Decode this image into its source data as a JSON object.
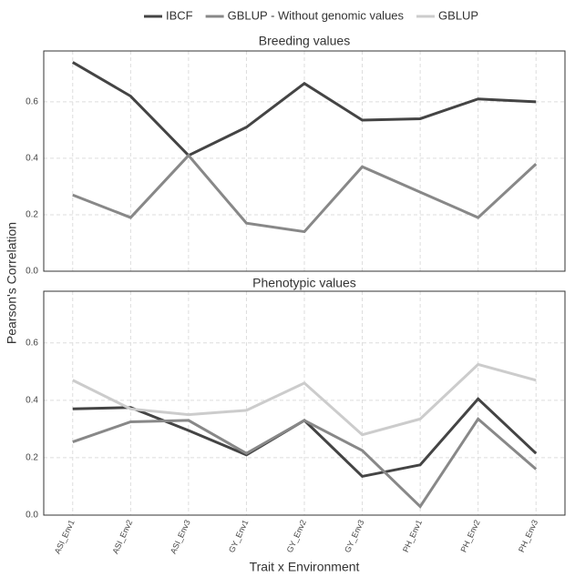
{
  "chart_data": [
    {
      "type": "line",
      "title": "Breeding values",
      "ylabel": "Pearson's Correlation",
      "categories": [
        "ASI_Env1",
        "ASI_Env2",
        "ASI_Env3",
        "GY_Env1",
        "GY_Env2",
        "GY_Env3",
        "PH_Env1",
        "PH_Env2",
        "PH_Env3"
      ],
      "series": [
        {
          "color": "#444444",
          "values": [
            0.74,
            0.62,
            0.41,
            0.51,
            0.665,
            0.535,
            0.54,
            0.61,
            0.6
          ]
        },
        {
          "color": "#888888",
          "values": [
            0.27,
            0.19,
            0.41,
            0.17,
            0.14,
            0.37,
            0.28,
            0.19,
            0.38
          ]
        }
      ],
      "ylim": [
        0,
        0.78
      ],
      "yticks": [
        {
          "value": 0,
          "label": "0.0"
        },
        {
          "value": 0.2,
          "label": "0.2"
        },
        {
          "value": 0.4,
          "label": "0.4"
        },
        {
          "value": 0.6,
          "label": "0.6"
        }
      ],
      "grid": true
    },
    {
      "type": "line",
      "title": "Phenotypic values",
      "xlabel": "Trait x Environment",
      "categories": [
        "ASI_Env1",
        "ASI_Env2",
        "ASI_Env3",
        "GY_Env1",
        "GY_Env2",
        "GY_Env3",
        "PH_Env1",
        "PH_Env2",
        "PH_Env3"
      ],
      "series": [
        {
          "name": "IBCF",
          "color": "#444444",
          "values": [
            0.37,
            0.375,
            0.295,
            0.21,
            0.33,
            0.135,
            0.175,
            0.405,
            0.215
          ]
        },
        {
          "name": "GBLUP - Without genomic values",
          "color": "#888888",
          "values": [
            0.255,
            0.325,
            0.33,
            0.215,
            0.33,
            0.225,
            0.03,
            0.335,
            0.16
          ]
        },
        {
          "name": "GBLUP",
          "color": "#cccccc",
          "values": [
            0.47,
            0.37,
            0.35,
            0.365,
            0.46,
            0.28,
            0.335,
            0.525,
            0.47
          ]
        }
      ],
      "ylim": [
        0,
        0.78
      ],
      "yticks": [
        {
          "value": 0,
          "label": "0.0"
        },
        {
          "value": 0.2,
          "label": "0.2"
        },
        {
          "value": 0.4,
          "label": "0.4"
        },
        {
          "value": 0.6,
          "label": "0.6"
        }
      ],
      "grid": true
    }
  ]
}
